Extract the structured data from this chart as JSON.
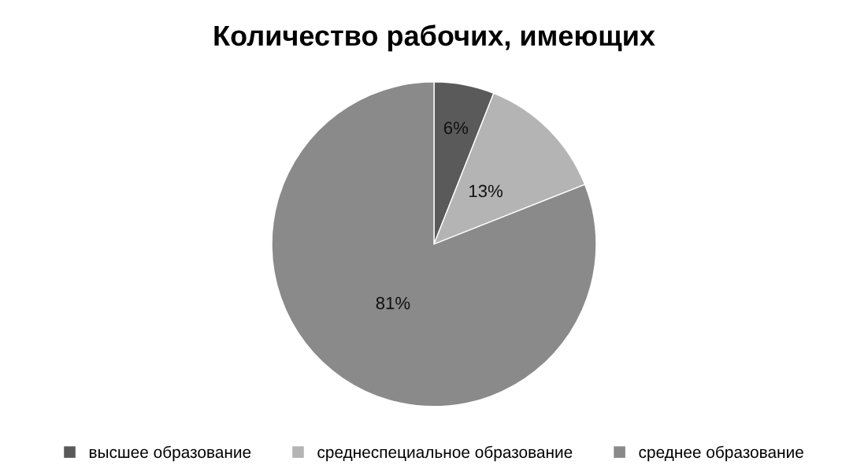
{
  "chart_data": {
    "type": "pie",
    "title": "Количество рабочих, имеющих",
    "categories": [
      "высшее образование",
      "среднеспециальное образование",
      "среднее образование"
    ],
    "values": [
      6,
      13,
      81
    ],
    "value_labels": [
      "6%",
      "13%",
      "81%"
    ],
    "colors": [
      "#5a5a5a",
      "#b4b4b4",
      "#8a8a8a"
    ],
    "legend": "bottom"
  }
}
